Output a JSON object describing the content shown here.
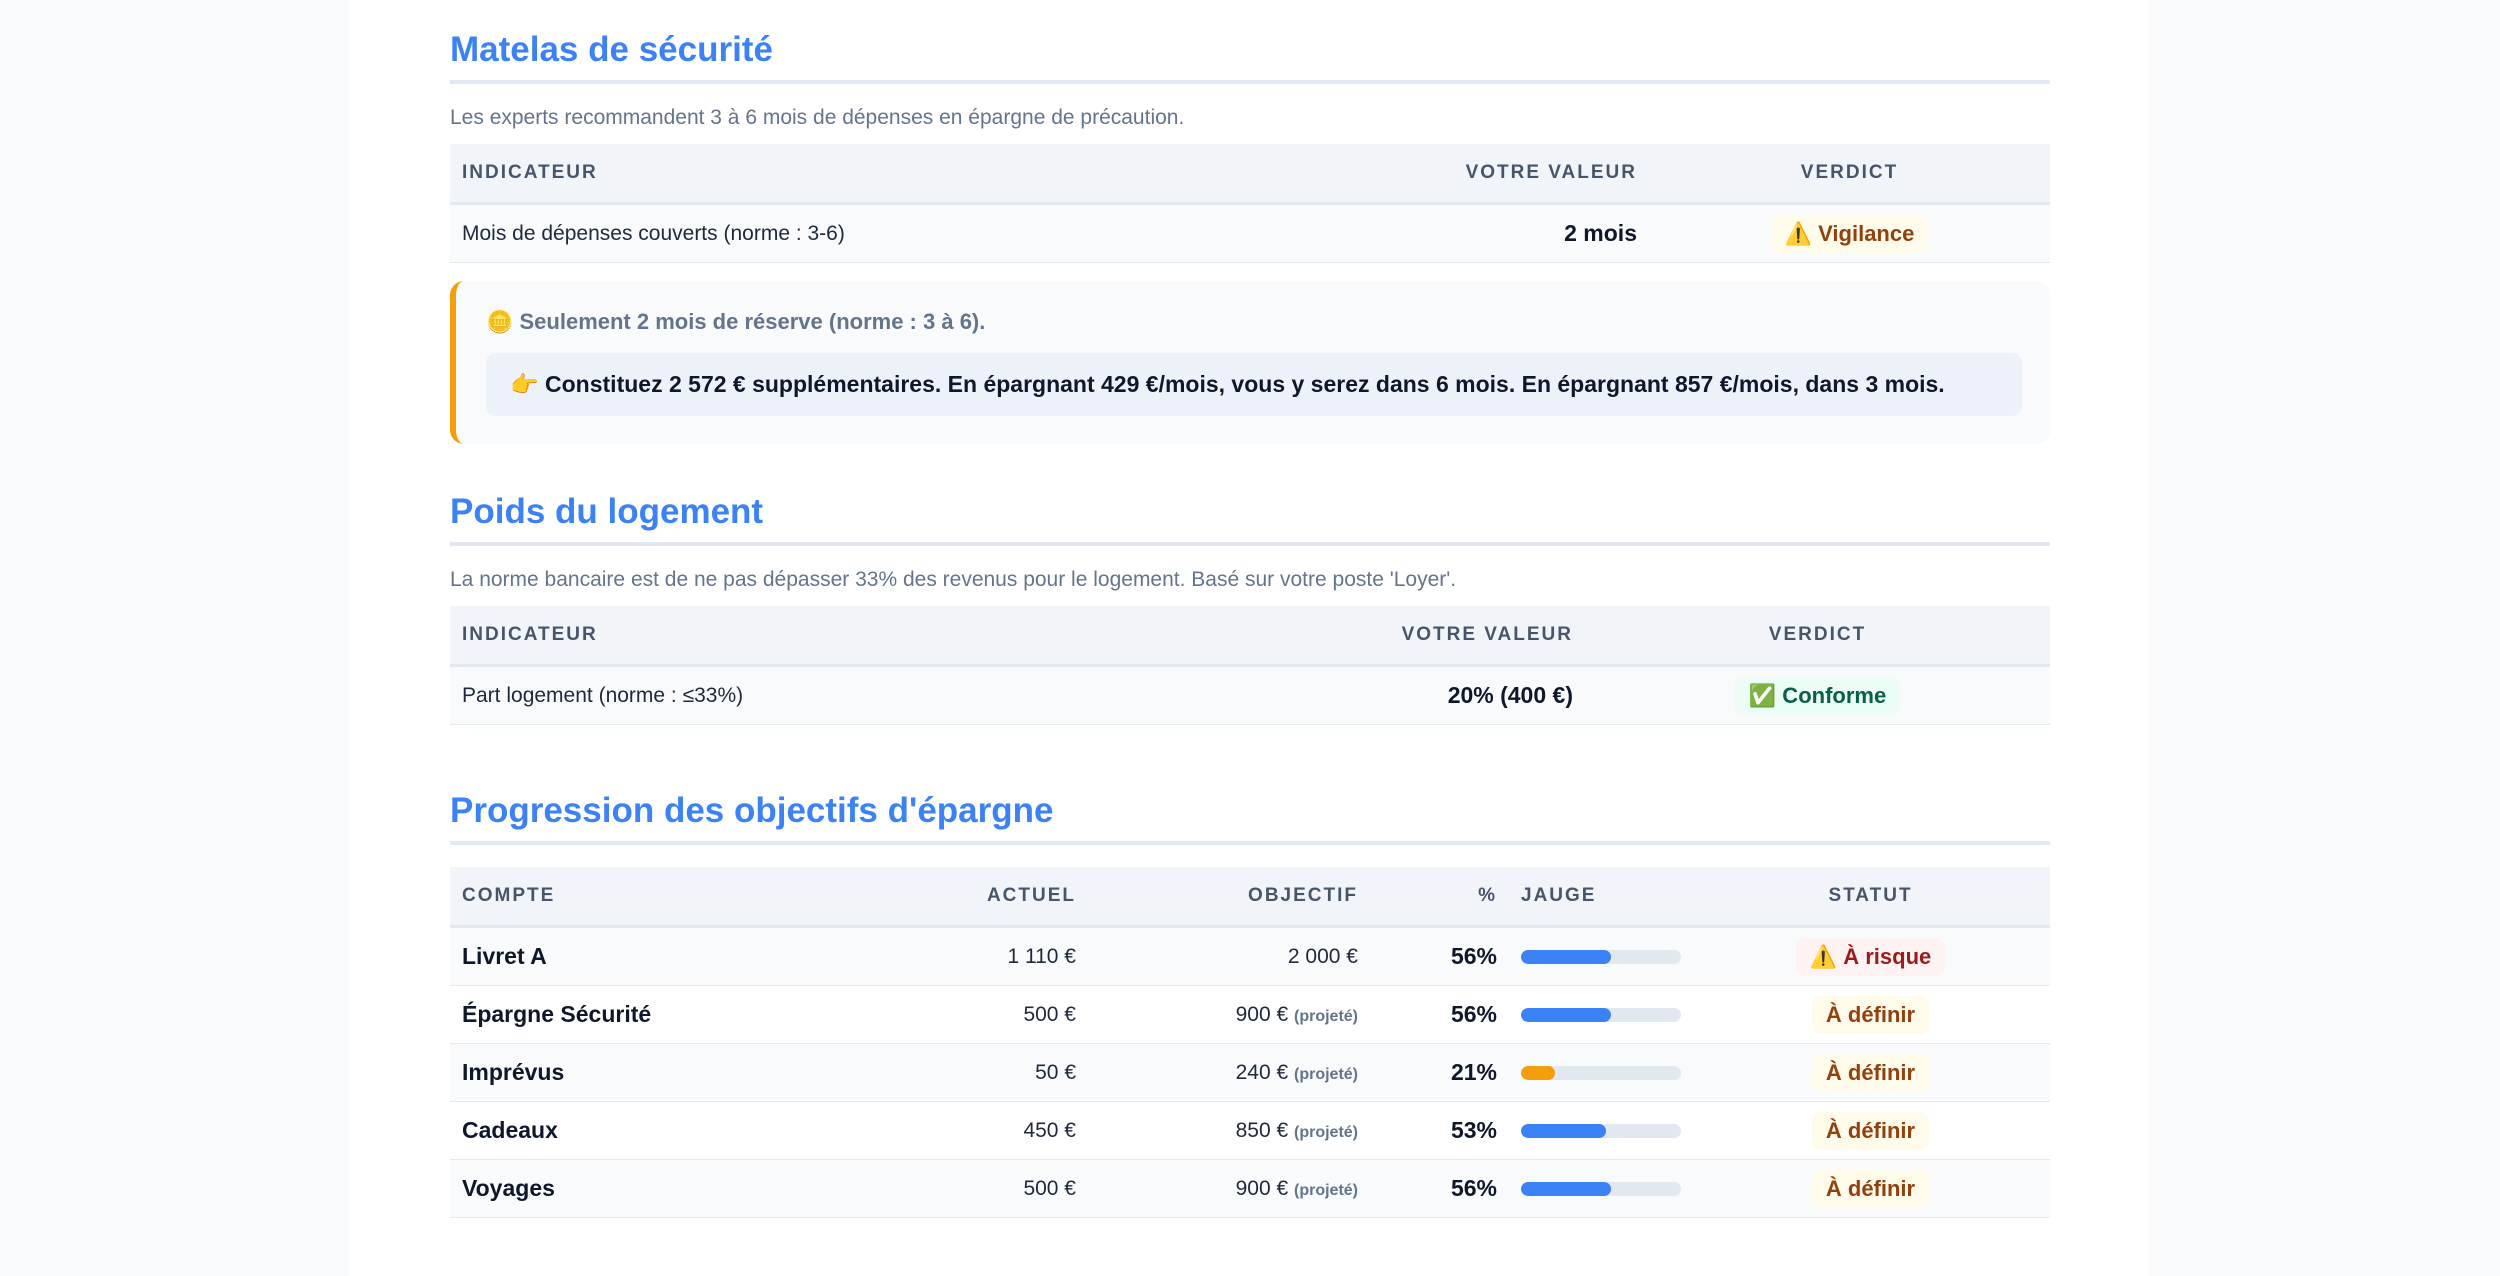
{
  "sections": [
    {
      "title": "Matelas de sécurité",
      "description": "Les experts recommandent 3 à 6 mois de dépenses en épargne de précaution.",
      "table": {
        "headers": [
          "INDICATEUR",
          "VOTRE VALEUR",
          "VERDICT"
        ],
        "rows": [
          {
            "indicator": "Mois de dépenses couverts (norme : 3-6)",
            "value": "2 mois",
            "verdict": "⚠️ Vigilance",
            "verdict_style": "warning"
          }
        ]
      },
      "callout": {
        "summary": "🪙 Seulement 2 mois de réserve (norme : 3 à 6).",
        "advice": "👉 Constituez 2 572 € supplémentaires. En épargnant 429 €/mois, vous y serez dans 6 mois. En épargnant 857 €/mois, dans 3 mois."
      }
    },
    {
      "title": "Poids du logement",
      "description": "La norme bancaire est de ne pas dépasser 33% des revenus pour le logement. Basé sur votre poste 'Loyer'.",
      "table": {
        "headers": [
          "INDICATEUR",
          "VOTRE VALEUR",
          "VERDICT"
        ],
        "rows": [
          {
            "indicator": "Part logement (norme : ≤33%)",
            "value": "20% (400 €)",
            "verdict": "✅ Conforme",
            "verdict_style": "ok"
          }
        ]
      }
    },
    {
      "title": "Progression des objectifs d'épargne",
      "table": {
        "headers": [
          "COMPTE",
          "ACTUEL",
          "OBJECTIF",
          "%",
          "JAUGE",
          "STATUT"
        ],
        "rows": [
          {
            "account": "Livret A",
            "current": "1 110 €",
            "target": "2 000 €",
            "percent": {
              "value": 56,
              "label": "56%"
            },
            "gauge_color": "#3b82f6",
            "status": "⚠️ À risque",
            "status_style": "danger"
          },
          {
            "account": "Épargne Sécurité",
            "current": "500 €",
            "target": "900 €",
            "target_note": "(projeté)",
            "percent": {
              "value": 56,
              "label": "56%"
            },
            "gauge_color": "#3b82f6",
            "status": "À définir",
            "status_style": "warning"
          },
          {
            "account": "Imprévus",
            "current": "50 €",
            "target": "240 €",
            "target_note": "(projeté)",
            "percent": {
              "value": 21,
              "label": "21%"
            },
            "gauge_color": "#f59e0b",
            "status": "À définir",
            "status_style": "warning"
          },
          {
            "account": "Cadeaux",
            "current": "450 €",
            "target": "850 €",
            "target_note": "(projeté)",
            "percent": {
              "value": 53,
              "label": "53%"
            },
            "gauge_color": "#3b82f6",
            "status": "À définir",
            "status_style": "warning"
          },
          {
            "account": "Voyages",
            "current": "500 €",
            "target": "900 €",
            "target_note": "(projeté)",
            "percent": {
              "value": 56,
              "label": "56%"
            },
            "gauge_color": "#3b82f6",
            "status": "À définir",
            "status_style": "warning"
          }
        ]
      }
    }
  ]
}
